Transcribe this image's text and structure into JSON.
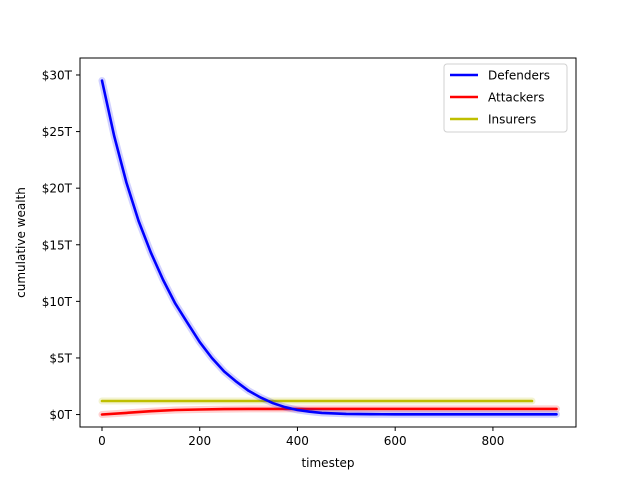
{
  "chart_data": {
    "type": "line",
    "title": "",
    "xlabel": "timestep",
    "ylabel": "cumulative wealth",
    "xlim": [
      -45,
      970
    ],
    "ylim": [
      -1.1,
      31.5
    ],
    "xticks": [
      0,
      200,
      400,
      600,
      800
    ],
    "xtick_labels": [
      "0",
      "200",
      "400",
      "600",
      "800"
    ],
    "yticks": [
      0,
      5,
      10,
      15,
      20,
      25,
      30
    ],
    "ytick_labels": [
      "$0T",
      "$5T",
      "$10T",
      "$15T",
      "$20T",
      "$25T",
      "$30T"
    ],
    "grid": false,
    "legend_position": "top-right",
    "series": [
      {
        "name": "Defenders",
        "color": "#0000ff",
        "x": [
          0,
          25,
          50,
          75,
          100,
          125,
          150,
          175,
          200,
          225,
          250,
          275,
          300,
          325,
          350,
          375,
          400,
          425,
          450,
          475,
          500,
          550,
          600,
          650,
          700,
          750,
          800,
          850,
          900,
          930
        ],
        "y": [
          29.5,
          24.6,
          20.5,
          17.1,
          14.3,
          11.9,
          9.8,
          8.1,
          6.4,
          5.0,
          3.8,
          2.9,
          2.1,
          1.5,
          1.0,
          0.65,
          0.4,
          0.25,
          0.15,
          0.1,
          0.06,
          0.03,
          0.02,
          0.02,
          0.02,
          0.02,
          0.02,
          0.02,
          0.02,
          0.02
        ]
      },
      {
        "name": "Attackers",
        "color": "#ff0000",
        "x": [
          0,
          50,
          100,
          150,
          200,
          250,
          300,
          350,
          400,
          500,
          600,
          700,
          800,
          900,
          930
        ],
        "y": [
          0.0,
          0.15,
          0.3,
          0.4,
          0.45,
          0.48,
          0.5,
          0.5,
          0.5,
          0.5,
          0.5,
          0.5,
          0.5,
          0.5,
          0.5
        ]
      },
      {
        "name": "Insurers",
        "color": "#bfbf00",
        "x": [
          0,
          100,
          200,
          300,
          400,
          500,
          600,
          700,
          800,
          880
        ],
        "y": [
          1.2,
          1.2,
          1.2,
          1.2,
          1.2,
          1.2,
          1.2,
          1.2,
          1.2,
          1.2
        ]
      }
    ]
  }
}
